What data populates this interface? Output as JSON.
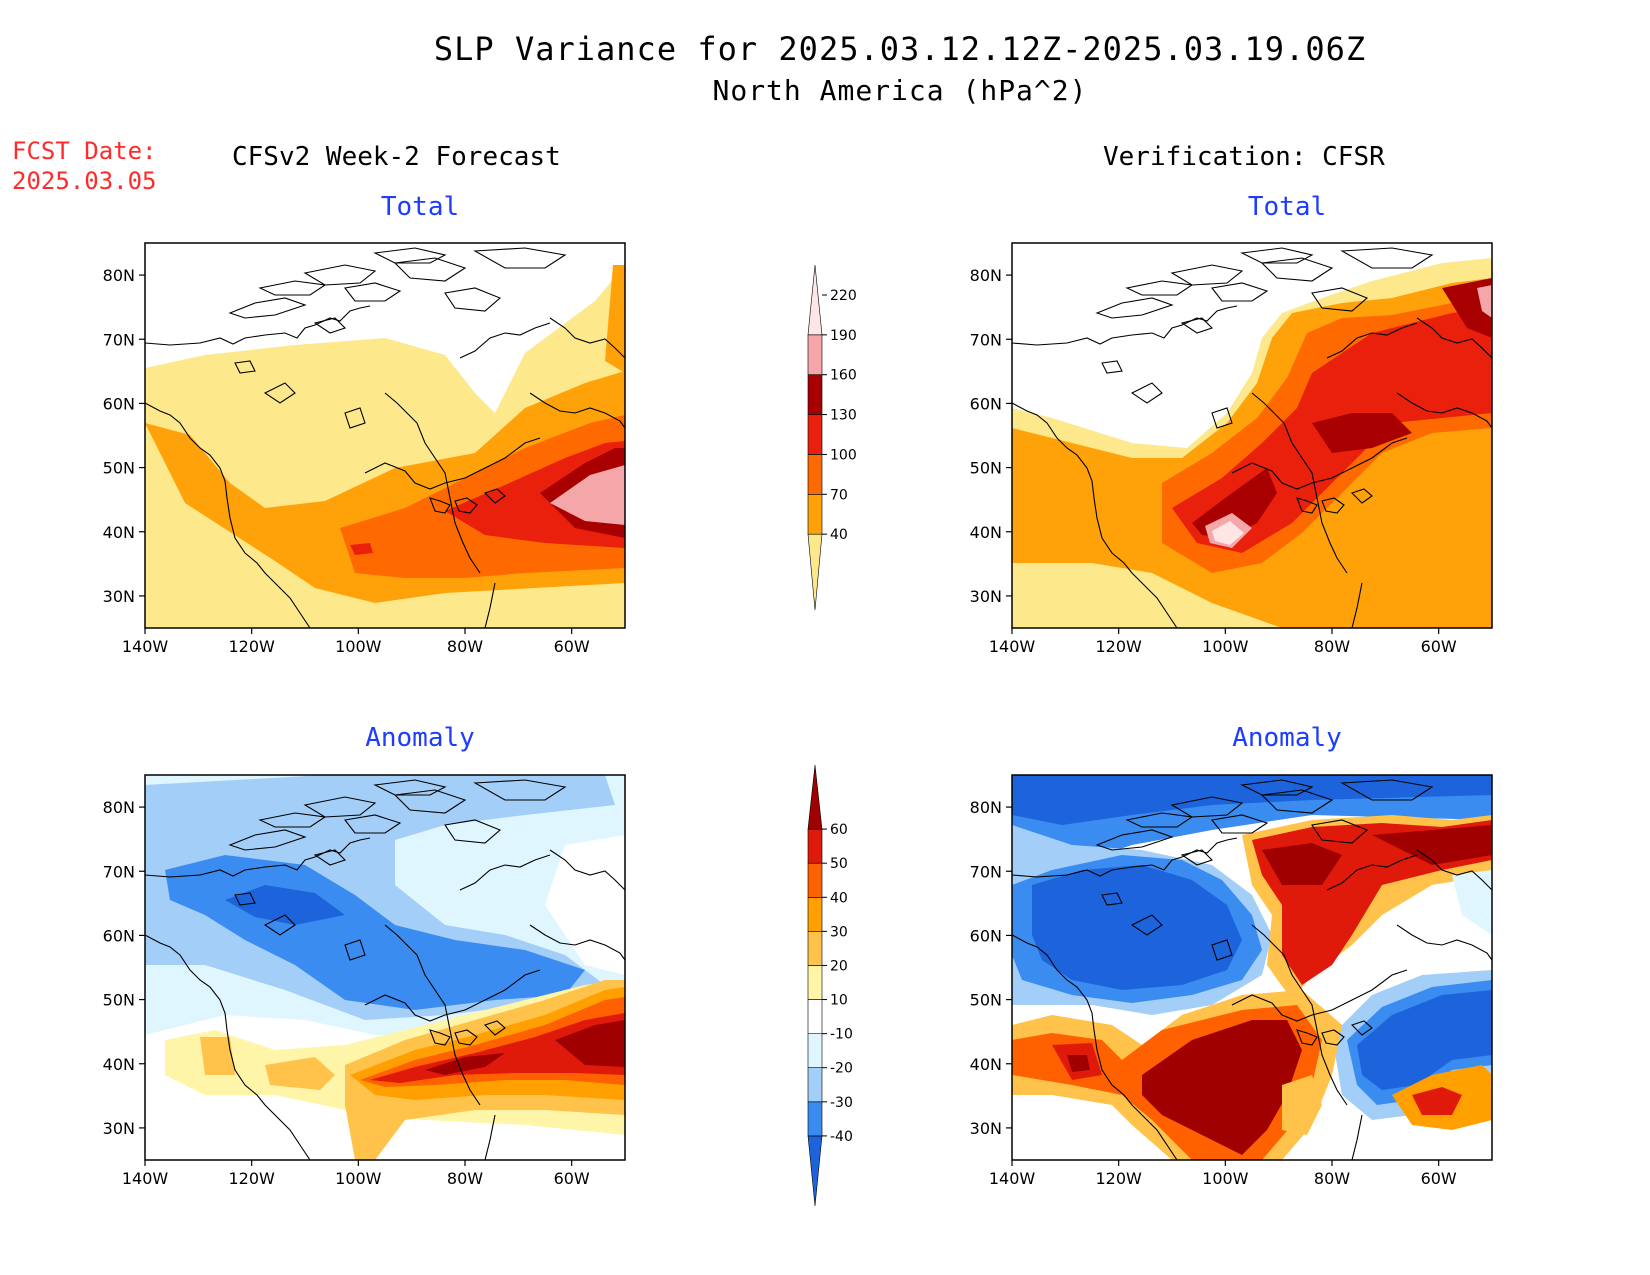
{
  "title": {
    "line1": "SLP Variance for 2025.03.12.12Z-2025.03.19.06Z",
    "line2": "North America (hPa^2)"
  },
  "forecast_date": {
    "label": "FCST Date:",
    "value": "2025.03.05"
  },
  "columns": {
    "left": "CFSv2 Week-2 Forecast",
    "right": "Verification: CFSR"
  },
  "panel_titles": {
    "top": "Total",
    "bottom": "Anomaly"
  },
  "axes": {
    "lat_labels": [
      "80N",
      "70N",
      "60N",
      "50N",
      "40N",
      "30N"
    ],
    "lat_values": [
      80,
      70,
      60,
      50,
      40,
      30
    ],
    "lon_labels": [
      "140W",
      "120W",
      "100W",
      "80W",
      "60W"
    ],
    "lon_values": [
      -140,
      -120,
      -100,
      -80,
      -60
    ],
    "lat_range": [
      25,
      85
    ],
    "lon_range": [
      -140,
      -50
    ]
  },
  "total_colorbar": {
    "levels": [
      "40",
      "70",
      "100",
      "130",
      "160",
      "190",
      "220"
    ],
    "colors": [
      "#fde98c",
      "#ffa20a",
      "#ff6a00",
      "#e8200c",
      "#a80000",
      "#f5a6a8",
      "#ffe6e6"
    ]
  },
  "anomaly_colorbar": {
    "levels": [
      "-40",
      "-30",
      "-20",
      "-10",
      "10",
      "20",
      "30",
      "40",
      "50",
      "60"
    ],
    "colors": [
      "#1d64dc",
      "#3a8cf0",
      "#a3cef8",
      "#e0f6ff",
      "#ffffff",
      "#fff5a8",
      "#ffc24a",
      "#ffa000",
      "#ff6000",
      "#e01a0a",
      "#a00000"
    ]
  }
}
